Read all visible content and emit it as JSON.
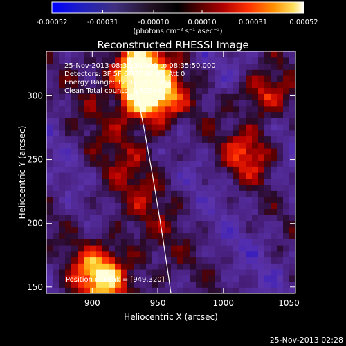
{
  "chart_data": {
    "type": "heatmap",
    "title": "Reconstructed RHESSI Image",
    "xlabel": "Heliocentric X (arcsec)",
    "ylabel": "Heliocentric Y (arcsec)",
    "xlim": [
      865,
      1055
    ],
    "ylim": [
      145,
      335
    ],
    "x_ticks": [
      900,
      950,
      1000,
      1050
    ],
    "y_ticks": [
      150,
      200,
      250,
      300
    ],
    "colorbar": {
      "min": -0.00052,
      "max": 0.00052,
      "ticks": [
        "-0.00052",
        "-0.00031",
        "-0.00010",
        "0.00010",
        "0.00031",
        "0.00052"
      ],
      "label": "(photons cm⁻² s⁻¹ asec⁻²)"
    },
    "annotations": [
      "25-Nov-2013 08:32:30.000 to 08:35:50.000",
      "Detectors: 3F 5F 6F 7F 8F 9F, Att 0",
      "Energy Range: 12.0 - 25.0 keV",
      "Clean     Total counts: 1.62E+04"
    ],
    "peak_label": "Position of Peak = [949,320]",
    "peak": [
      949,
      320
    ],
    "bright_sources": [
      {
        "x": 945,
        "y": 300,
        "strength": 1.0
      },
      {
        "x": 935,
        "y": 320,
        "strength": 0.8
      },
      {
        "x": 905,
        "y": 160,
        "strength": 0.75
      },
      {
        "x": 1030,
        "y": 300,
        "strength": 0.6
      },
      {
        "x": 1020,
        "y": 255,
        "strength": 0.55
      }
    ]
  },
  "footer_date": "25-Nov-2013 02:28"
}
